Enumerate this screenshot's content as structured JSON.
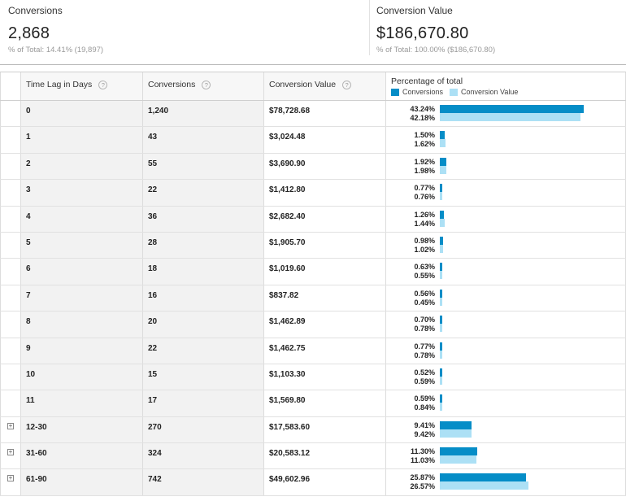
{
  "summary": {
    "conversions": {
      "label": "Conversions",
      "value": "2,868",
      "sub": "% of Total: 14.41% (19,897)"
    },
    "conversion_value": {
      "label": "Conversion Value",
      "value": "$186,670.80",
      "sub": "% of Total: 100.00% ($186,670.80)"
    }
  },
  "table": {
    "headers": {
      "lag": "Time Lag in Days",
      "conversions": "Conversions",
      "value": "Conversion Value",
      "percentage": "Percentage of total"
    },
    "help_glyph": "?",
    "legend": {
      "a": "Conversions",
      "b": "Conversion Value"
    },
    "colors": {
      "conversions": "#058dc7",
      "conversion_value": "#ace0f5"
    },
    "expand_glyph": "⊞",
    "rows": [
      {
        "lag": "0",
        "conversions": "1,240",
        "value": "$78,728.68",
        "pct_conv": "43.24%",
        "pct_val": "42.18%",
        "expandable": false
      },
      {
        "lag": "1",
        "conversions": "43",
        "value": "$3,024.48",
        "pct_conv": "1.50%",
        "pct_val": "1.62%",
        "expandable": false
      },
      {
        "lag": "2",
        "conversions": "55",
        "value": "$3,690.90",
        "pct_conv": "1.92%",
        "pct_val": "1.98%",
        "expandable": false
      },
      {
        "lag": "3",
        "conversions": "22",
        "value": "$1,412.80",
        "pct_conv": "0.77%",
        "pct_val": "0.76%",
        "expandable": false
      },
      {
        "lag": "4",
        "conversions": "36",
        "value": "$2,682.40",
        "pct_conv": "1.26%",
        "pct_val": "1.44%",
        "expandable": false
      },
      {
        "lag": "5",
        "conversions": "28",
        "value": "$1,905.70",
        "pct_conv": "0.98%",
        "pct_val": "1.02%",
        "expandable": false
      },
      {
        "lag": "6",
        "conversions": "18",
        "value": "$1,019.60",
        "pct_conv": "0.63%",
        "pct_val": "0.55%",
        "expandable": false
      },
      {
        "lag": "7",
        "conversions": "16",
        "value": "$837.82",
        "pct_conv": "0.56%",
        "pct_val": "0.45%",
        "expandable": false
      },
      {
        "lag": "8",
        "conversions": "20",
        "value": "$1,462.89",
        "pct_conv": "0.70%",
        "pct_val": "0.78%",
        "expandable": false
      },
      {
        "lag": "9",
        "conversions": "22",
        "value": "$1,462.75",
        "pct_conv": "0.77%",
        "pct_val": "0.78%",
        "expandable": false
      },
      {
        "lag": "10",
        "conversions": "15",
        "value": "$1,103.30",
        "pct_conv": "0.52%",
        "pct_val": "0.59%",
        "expandable": false
      },
      {
        "lag": "11",
        "conversions": "17",
        "value": "$1,569.80",
        "pct_conv": "0.59%",
        "pct_val": "0.84%",
        "expandable": false
      },
      {
        "lag": "12-30",
        "conversions": "270",
        "value": "$17,583.60",
        "pct_conv": "9.41%",
        "pct_val": "9.42%",
        "expandable": true
      },
      {
        "lag": "31-60",
        "conversions": "324",
        "value": "$20,583.12",
        "pct_conv": "11.30%",
        "pct_val": "11.03%",
        "expandable": true
      },
      {
        "lag": "61-90",
        "conversions": "742",
        "value": "$49,602.96",
        "pct_conv": "25.87%",
        "pct_val": "26.57%",
        "expandable": true
      }
    ]
  }
}
